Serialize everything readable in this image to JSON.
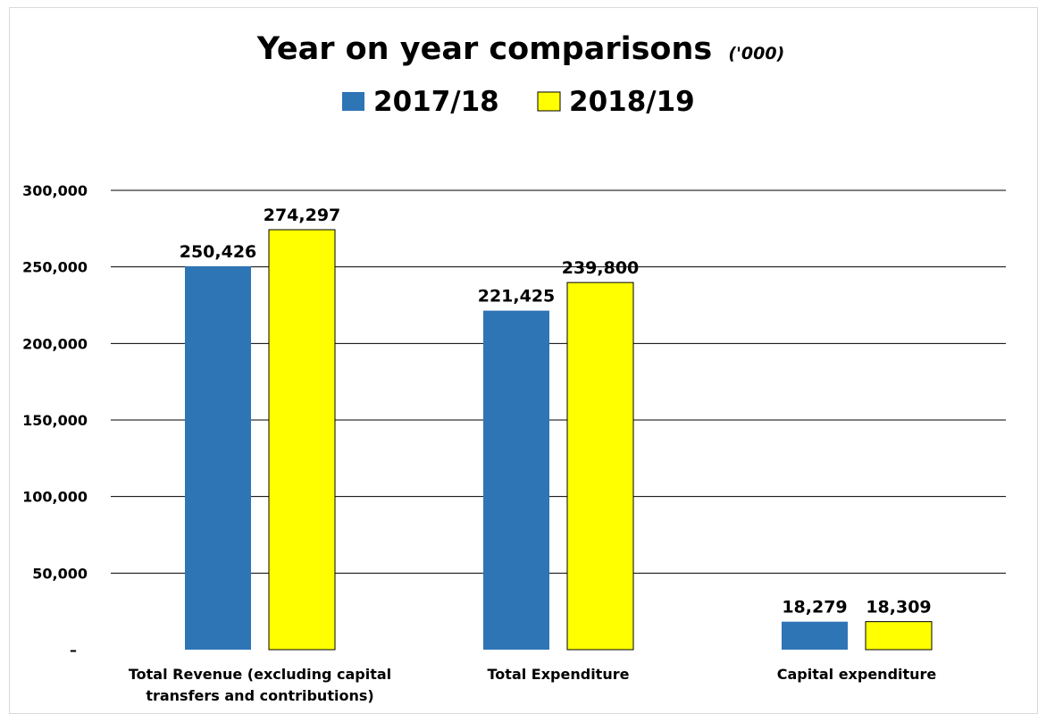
{
  "chart_data": {
    "type": "bar",
    "title": "Year on year comparisons",
    "title_suffix": "('000)",
    "categories": [
      [
        "Total Revenue (excluding capital",
        "transfers and contributions)"
      ],
      [
        "Total Expenditure"
      ],
      [
        "Capital expenditure"
      ]
    ],
    "series": [
      {
        "name": "2017/18",
        "color": "#2e75b6",
        "values": [
          250426,
          221425,
          18279
        ],
        "labels": [
          "250,426",
          "221,425",
          "18,279"
        ]
      },
      {
        "name": "2018/19",
        "color": "#ffff00",
        "values": [
          274297,
          239800,
          18309
        ],
        "labels": [
          "274,297",
          "239,800",
          "18,309"
        ]
      }
    ],
    "ylim": [
      0,
      300000
    ],
    "yticks": [
      0,
      50000,
      100000,
      150000,
      200000,
      250000,
      300000
    ],
    "ytick_labels": [
      "–",
      "50,000",
      "100,000",
      "150,000",
      "200,000",
      "250,000",
      "300,000"
    ],
    "grid": true,
    "legend_position": "top-center"
  }
}
